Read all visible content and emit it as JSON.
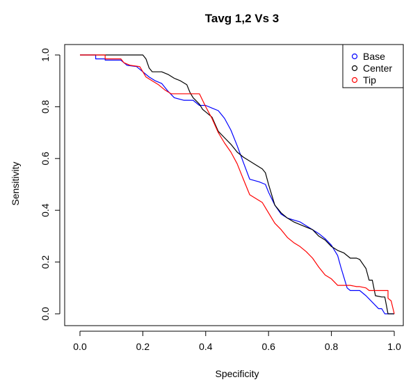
{
  "chart_data": {
    "type": "line",
    "title": "Tavg 1,2 Vs 3",
    "xlabel": "Specificity",
    "ylabel": "Sensitivity",
    "xlim": [
      0,
      1
    ],
    "ylim": [
      0,
      1
    ],
    "xticks": [
      "0.0",
      "0.2",
      "0.4",
      "0.6",
      "0.8",
      "1.0"
    ],
    "yticks": [
      "0.0",
      "0.2",
      "0.4",
      "0.6",
      "0.8",
      "1.0"
    ],
    "grid": false,
    "legend": {
      "placement": "top-right",
      "marker": "open-circle"
    },
    "series": [
      {
        "name": "Base",
        "color": "#0000ff",
        "points": [
          [
            0.0,
            1.0
          ],
          [
            0.05,
            1.0
          ],
          [
            0.05,
            0.985
          ],
          [
            0.08,
            0.985
          ],
          [
            0.08,
            0.98
          ],
          [
            0.13,
            0.98
          ],
          [
            0.15,
            0.96
          ],
          [
            0.18,
            0.955
          ],
          [
            0.2,
            0.935
          ],
          [
            0.22,
            0.915
          ],
          [
            0.24,
            0.9
          ],
          [
            0.26,
            0.89
          ],
          [
            0.28,
            0.86
          ],
          [
            0.3,
            0.835
          ],
          [
            0.33,
            0.825
          ],
          [
            0.36,
            0.825
          ],
          [
            0.38,
            0.805
          ],
          [
            0.4,
            0.805
          ],
          [
            0.42,
            0.795
          ],
          [
            0.44,
            0.785
          ],
          [
            0.46,
            0.755
          ],
          [
            0.48,
            0.71
          ],
          [
            0.5,
            0.65
          ],
          [
            0.52,
            0.585
          ],
          [
            0.54,
            0.52
          ],
          [
            0.57,
            0.51
          ],
          [
            0.59,
            0.5
          ],
          [
            0.6,
            0.47
          ],
          [
            0.62,
            0.42
          ],
          [
            0.64,
            0.385
          ],
          [
            0.66,
            0.37
          ],
          [
            0.7,
            0.355
          ],
          [
            0.72,
            0.34
          ],
          [
            0.74,
            0.325
          ],
          [
            0.76,
            0.31
          ],
          [
            0.78,
            0.29
          ],
          [
            0.8,
            0.265
          ],
          [
            0.82,
            0.225
          ],
          [
            0.83,
            0.18
          ],
          [
            0.84,
            0.14
          ],
          [
            0.85,
            0.1
          ],
          [
            0.86,
            0.09
          ],
          [
            0.89,
            0.09
          ],
          [
            0.91,
            0.07
          ],
          [
            0.93,
            0.045
          ],
          [
            0.95,
            0.02
          ],
          [
            0.96,
            0.02
          ],
          [
            0.97,
            0.0
          ],
          [
            1.0,
            0.0
          ]
        ]
      },
      {
        "name": "Center",
        "color": "#000000",
        "points": [
          [
            0.0,
            1.0
          ],
          [
            0.2,
            1.0
          ],
          [
            0.21,
            0.985
          ],
          [
            0.22,
            0.95
          ],
          [
            0.23,
            0.935
          ],
          [
            0.26,
            0.935
          ],
          [
            0.28,
            0.925
          ],
          [
            0.3,
            0.91
          ],
          [
            0.32,
            0.9
          ],
          [
            0.34,
            0.885
          ],
          [
            0.35,
            0.855
          ],
          [
            0.36,
            0.835
          ],
          [
            0.38,
            0.81
          ],
          [
            0.39,
            0.79
          ],
          [
            0.4,
            0.78
          ],
          [
            0.42,
            0.76
          ],
          [
            0.44,
            0.705
          ],
          [
            0.46,
            0.68
          ],
          [
            0.48,
            0.655
          ],
          [
            0.5,
            0.625
          ],
          [
            0.52,
            0.605
          ],
          [
            0.54,
            0.59
          ],
          [
            0.56,
            0.575
          ],
          [
            0.58,
            0.56
          ],
          [
            0.59,
            0.545
          ],
          [
            0.6,
            0.5
          ],
          [
            0.61,
            0.46
          ],
          [
            0.62,
            0.42
          ],
          [
            0.64,
            0.39
          ],
          [
            0.66,
            0.37
          ],
          [
            0.68,
            0.355
          ],
          [
            0.7,
            0.345
          ],
          [
            0.72,
            0.335
          ],
          [
            0.74,
            0.325
          ],
          [
            0.76,
            0.3
          ],
          [
            0.78,
            0.285
          ],
          [
            0.8,
            0.26
          ],
          [
            0.82,
            0.245
          ],
          [
            0.84,
            0.235
          ],
          [
            0.86,
            0.215
          ],
          [
            0.88,
            0.215
          ],
          [
            0.89,
            0.21
          ],
          [
            0.91,
            0.175
          ],
          [
            0.92,
            0.13
          ],
          [
            0.93,
            0.13
          ],
          [
            0.94,
            0.07
          ],
          [
            0.96,
            0.065
          ],
          [
            0.97,
            0.065
          ],
          [
            0.98,
            0.0
          ],
          [
            1.0,
            0.0
          ]
        ]
      },
      {
        "name": "Tip",
        "color": "#ff0000",
        "points": [
          [
            0.0,
            1.0
          ],
          [
            0.08,
            1.0
          ],
          [
            0.08,
            0.985
          ],
          [
            0.1,
            0.985
          ],
          [
            0.13,
            0.985
          ],
          [
            0.14,
            0.97
          ],
          [
            0.16,
            0.96
          ],
          [
            0.19,
            0.955
          ],
          [
            0.21,
            0.915
          ],
          [
            0.23,
            0.9
          ],
          [
            0.25,
            0.885
          ],
          [
            0.27,
            0.865
          ],
          [
            0.29,
            0.85
          ],
          [
            0.38,
            0.85
          ],
          [
            0.4,
            0.8
          ],
          [
            0.42,
            0.755
          ],
          [
            0.44,
            0.7
          ],
          [
            0.46,
            0.66
          ],
          [
            0.48,
            0.625
          ],
          [
            0.5,
            0.58
          ],
          [
            0.52,
            0.52
          ],
          [
            0.54,
            0.46
          ],
          [
            0.58,
            0.43
          ],
          [
            0.6,
            0.39
          ],
          [
            0.62,
            0.35
          ],
          [
            0.64,
            0.325
          ],
          [
            0.66,
            0.295
          ],
          [
            0.68,
            0.275
          ],
          [
            0.7,
            0.26
          ],
          [
            0.72,
            0.24
          ],
          [
            0.74,
            0.215
          ],
          [
            0.76,
            0.18
          ],
          [
            0.78,
            0.15
          ],
          [
            0.8,
            0.135
          ],
          [
            0.82,
            0.11
          ],
          [
            0.86,
            0.11
          ],
          [
            0.88,
            0.105
          ],
          [
            0.89,
            0.105
          ],
          [
            0.91,
            0.1
          ],
          [
            0.92,
            0.09
          ],
          [
            0.93,
            0.09
          ],
          [
            0.98,
            0.09
          ],
          [
            0.98,
            0.06
          ],
          [
            0.99,
            0.05
          ],
          [
            1.0,
            0.0
          ]
        ]
      }
    ]
  }
}
